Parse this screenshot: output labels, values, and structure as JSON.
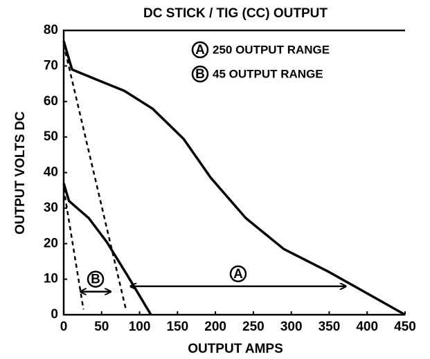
{
  "chart_data": {
    "type": "line",
    "title": "DC STICK / TIG (CC) OUTPUT",
    "xlabel": "OUTPUT AMPS",
    "ylabel": "OUTPUT VOLTS DC",
    "xlim": [
      0,
      450
    ],
    "ylim": [
      0,
      80
    ],
    "xticks": [
      0,
      50,
      100,
      150,
      200,
      250,
      300,
      350,
      400,
      450
    ],
    "yticks": [
      0,
      10,
      20,
      30,
      40,
      50,
      60,
      70,
      80
    ],
    "color": "#000000",
    "series": [
      {
        "name": "250 OUTPUT RANGE",
        "letter": "A",
        "x": [
          0,
          11,
          51,
          80,
          117,
          158,
          194,
          240,
          290,
          350,
          450
        ],
        "values": [
          77,
          69,
          65.5,
          63,
          58,
          49.5,
          38.5,
          27.2,
          18.5,
          12,
          0
        ],
        "min_x": [
          0,
          82
        ],
        "min_values": [
          76,
          1.5
        ],
        "arrow_x": [
          88,
          372
        ],
        "arrow_y": 8
      },
      {
        "name": "45 OUTPUT RANGE",
        "letter": "B",
        "x": [
          0,
          7,
          33,
          57,
          85,
          115
        ],
        "values": [
          37,
          32,
          27.2,
          20.4,
          10.7,
          0
        ],
        "min_x": [
          0,
          26
        ],
        "min_values": [
          35.5,
          1.5
        ],
        "arrow_x": [
          22,
          62
        ],
        "arrow_y": 6.5
      }
    ]
  }
}
